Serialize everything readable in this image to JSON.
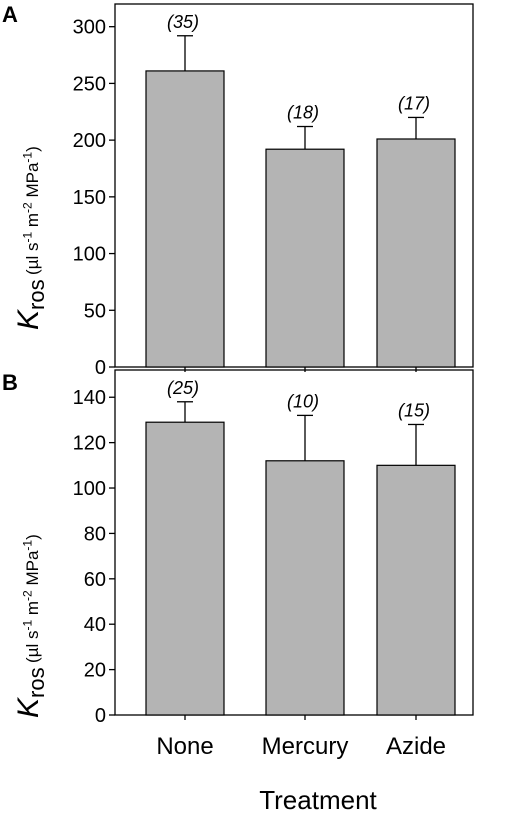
{
  "chart_data": [
    {
      "panel": "A",
      "type": "bar",
      "categories": [
        "None",
        "Mercury",
        "Azide"
      ],
      "values": [
        261,
        192,
        201
      ],
      "errors": [
        31,
        20,
        19
      ],
      "annotations": [
        "(35)",
        "(18)",
        "(17)"
      ],
      "ylim": [
        0,
        320
      ],
      "yticks": [
        0,
        50,
        100,
        150,
        200,
        250,
        300
      ],
      "ylabel": {
        "symbol": "K",
        "subscript": "ros",
        "unit_parts": [
          "(µl s",
          "-1",
          " m",
          "-2",
          " MPa",
          "-1",
          ")"
        ]
      },
      "bar_color": "#b4b4b4"
    },
    {
      "panel": "B",
      "type": "bar",
      "categories": [
        "None",
        "Mercury",
        "Azide"
      ],
      "values": [
        129,
        112,
        110
      ],
      "errors": [
        9,
        20,
        18
      ],
      "annotations": [
        "(25)",
        "(10)",
        "(15)"
      ],
      "ylim": [
        0,
        152
      ],
      "yticks": [
        0,
        20,
        40,
        60,
        80,
        100,
        120,
        140
      ],
      "ylabel": {
        "symbol": "K",
        "subscript": "ros",
        "unit_parts": [
          "(µl s",
          "-1",
          " m",
          "-2",
          " MPa",
          "-1",
          ")"
        ]
      },
      "bar_color": "#b4b4b4"
    }
  ],
  "xlabel": "Treatment",
  "xcategories": [
    "None",
    "Mercury",
    "Azide"
  ]
}
